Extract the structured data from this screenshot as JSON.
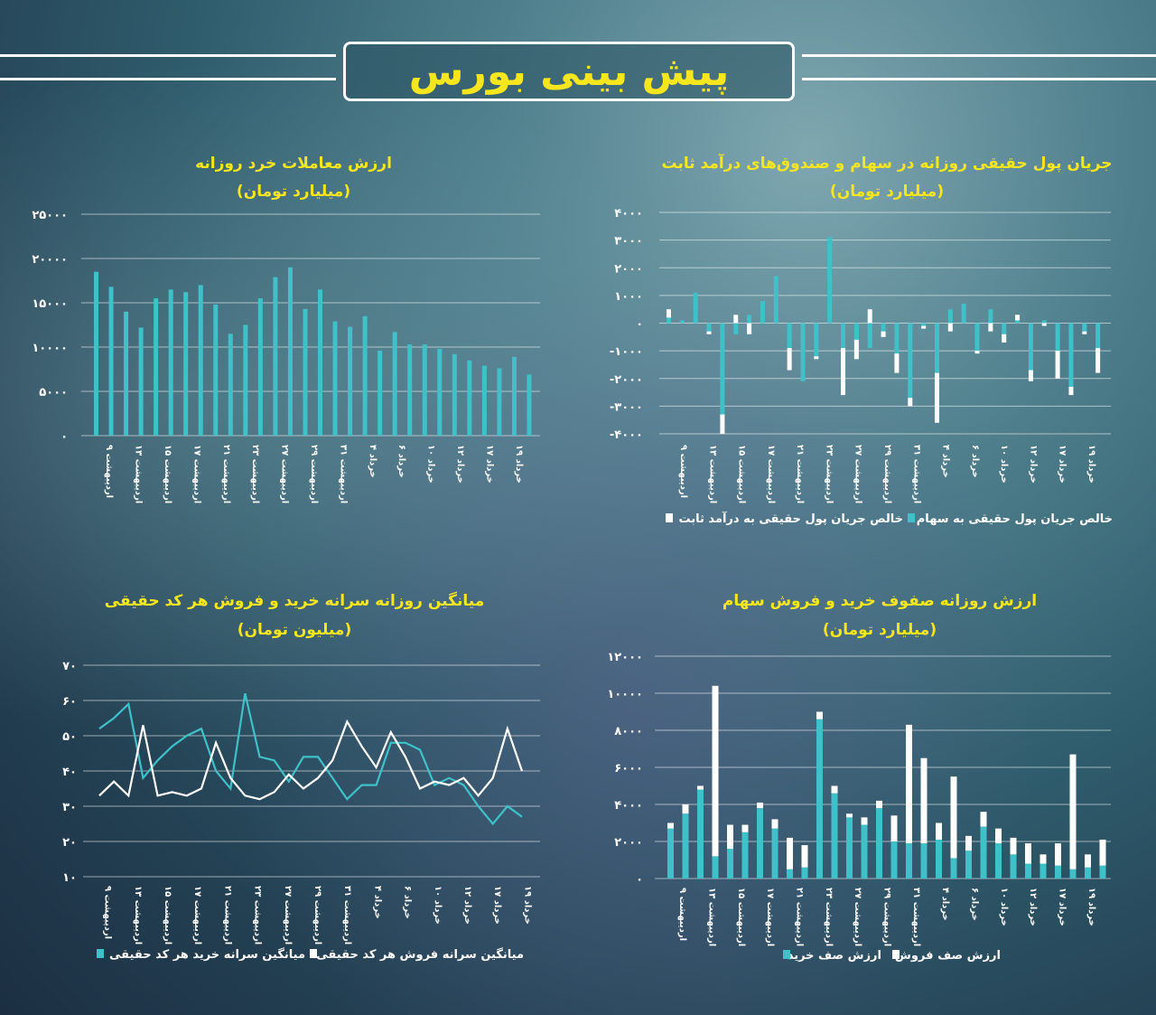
{
  "header": {
    "title": "پیش بینی بورس"
  },
  "colors": {
    "accent": "#3fc1c9",
    "white": "#ffffff",
    "title": "#f7e51e"
  },
  "dates": [
    "اردیبهشت ۹",
    "اردیبهشت ۱۳",
    "اردیبهشت ۱۵",
    "اردیبهشت ۱۷",
    "اردیبهشت ۲۱",
    "اردیبهشت ۲۳",
    "اردیبهشت ۲۷",
    "اردیبهشت ۲۹",
    "اردیبهشت ۳۱",
    "خرداد ۴",
    "خرداد ۶",
    "خرداد ۱۰",
    "خرداد ۱۲",
    "خرداد ۱۷",
    "خرداد ۱۹"
  ],
  "charts": {
    "retail": {
      "title": "ارزش معاملات خرد روزانه",
      "subtitle": "(میلیارد تومان)",
      "yticks": [
        "۲۵۰۰۰",
        "۲۰۰۰۰",
        "۱۵۰۰۰",
        "۱۰۰۰۰",
        "۵۰۰۰",
        "۰"
      ]
    },
    "moneyflow": {
      "title": "جریان پول حقیقی روزانه در سهام و صندوق‌های درآمد ثابت",
      "subtitle": "(میلیارد تومان)",
      "yticks": [
        "۴۰۰۰",
        "۳۰۰۰",
        "۲۰۰۰",
        "۱۰۰۰",
        "۰",
        "-۱۰۰۰",
        "-۲۰۰۰",
        "-۳۰۰۰",
        "-۴۰۰۰"
      ],
      "legend": [
        "خالص جریان پول حقیقی به سهام",
        "خالص جریان پول حقیقی به درآمد ثابت"
      ]
    },
    "percapita": {
      "title": "میانگین روزانه سرانه خرید و فروش هر کد حقیقی",
      "subtitle": "(میلیون تومان)",
      "yticks": [
        "۷۰",
        "۶۰",
        "۵۰",
        "۴۰",
        "۳۰",
        "۲۰",
        "۱۰"
      ],
      "legend": [
        "میانگین سرانه خرید هر کد حقیقی",
        "میانگین سرانه فروش هر کد حقیقی"
      ]
    },
    "queues": {
      "title": "ارزش روزانه صفوف خرید و فروش سهام",
      "subtitle": "(میلیارد تومان)",
      "yticks": [
        "۱۲۰۰۰",
        "۱۰۰۰۰",
        "۸۰۰۰",
        "۶۰۰۰",
        "۴۰۰۰",
        "۲۰۰۰",
        "۰"
      ],
      "legend": [
        "ارزش صف خرید",
        "ارزش صف فروش"
      ]
    }
  },
  "chart_data": [
    {
      "type": "bar",
      "title": "ارزش معاملات خرد روزانه",
      "ylabel": "(میلیارد تومان)",
      "ylim": [
        0,
        25000
      ],
      "values": [
        18500,
        16800,
        14000,
        12200,
        15500,
        16500,
        16200,
        17000,
        14800,
        11500,
        12500,
        15500,
        17900,
        19000,
        14300,
        16500,
        12900,
        12300,
        13500,
        9600,
        11700,
        10300,
        10300,
        9800,
        9200,
        8500,
        7900,
        7600,
        8900,
        6900
      ],
      "grid": true
    },
    {
      "type": "bar",
      "title": "جریان پول حقیقی روزانه در سهام و صندوق‌های درآمد ثابت",
      "ylabel": "(میلیارد تومان)",
      "ylim": [
        -4000,
        4000
      ],
      "series": [
        {
          "name": "خالص جریان پول حقیقی به سهام",
          "values": [
            200,
            100,
            1100,
            -300,
            -3300,
            -400,
            300,
            800,
            1700,
            -900,
            -2100,
            -1200,
            3100,
            -900,
            -600,
            -900,
            -300,
            -1100,
            -2700,
            -100,
            -1800,
            500,
            700,
            -1000,
            500,
            -400,
            100,
            -1700,
            100,
            -1000,
            -2300,
            -300,
            -900
          ]
        },
        {
          "name": "خالص جریان پول حقیقی به درآمد ثابت",
          "values": [
            300,
            0,
            0,
            -100,
            -700,
            300,
            -400,
            0,
            0,
            -800,
            0,
            -100,
            0,
            -1700,
            -700,
            500,
            -200,
            -700,
            -300,
            -100,
            -1800,
            -300,
            0,
            -100,
            -300,
            -300,
            200,
            -400,
            -100,
            -1000,
            -300,
            -100,
            -900
          ]
        }
      ]
    },
    {
      "type": "line",
      "title": "میانگین روزانه سرانه خرید و فروش هر کد حقیقی",
      "ylabel": "(میلیون تومان)",
      "ylim": [
        10,
        70
      ],
      "series": [
        {
          "name": "میانگین سرانه خرید هر کد حقیقی",
          "values": [
            52,
            55,
            59,
            38,
            43,
            47,
            50,
            52,
            40,
            35,
            62,
            44,
            43,
            37,
            44,
            44,
            38,
            32,
            36,
            36,
            48,
            48,
            46,
            36,
            38,
            36,
            30,
            25,
            30,
            27
          ]
        },
        {
          "name": "میانگین سرانه فروش هر کد حقیقی",
          "values": [
            33,
            37,
            33,
            53,
            33,
            34,
            33,
            35,
            48,
            38,
            33,
            32,
            34,
            39,
            35,
            38,
            43,
            54,
            47,
            41,
            51,
            44,
            35,
            37,
            36,
            38,
            33,
            38,
            52,
            40
          ]
        }
      ]
    },
    {
      "type": "bar",
      "title": "ارزش روزانه صفوف خرید و فروش سهام",
      "ylabel": "(میلیارد تومان)",
      "ylim": [
        0,
        12000
      ],
      "series": [
        {
          "name": "ارزش صف خرید",
          "values": [
            2700,
            3500,
            4800,
            1200,
            1600,
            2500,
            3800,
            2700,
            500,
            600,
            8600,
            4600,
            3300,
            2900,
            3800,
            2000,
            1900,
            1900,
            2100,
            1100,
            1500,
            2800,
            1900,
            1300,
            800,
            800,
            700,
            500,
            600,
            700
          ]
        },
        {
          "name": "ارزش صف فروش",
          "values": [
            300,
            500,
            200,
            9200,
            1300,
            400,
            300,
            500,
            1700,
            1200,
            400,
            400,
            200,
            400,
            400,
            1400,
            6400,
            4600,
            900,
            4400,
            800,
            800,
            800,
            900,
            1100,
            500,
            1200,
            6200,
            700,
            1400
          ]
        }
      ]
    }
  ]
}
